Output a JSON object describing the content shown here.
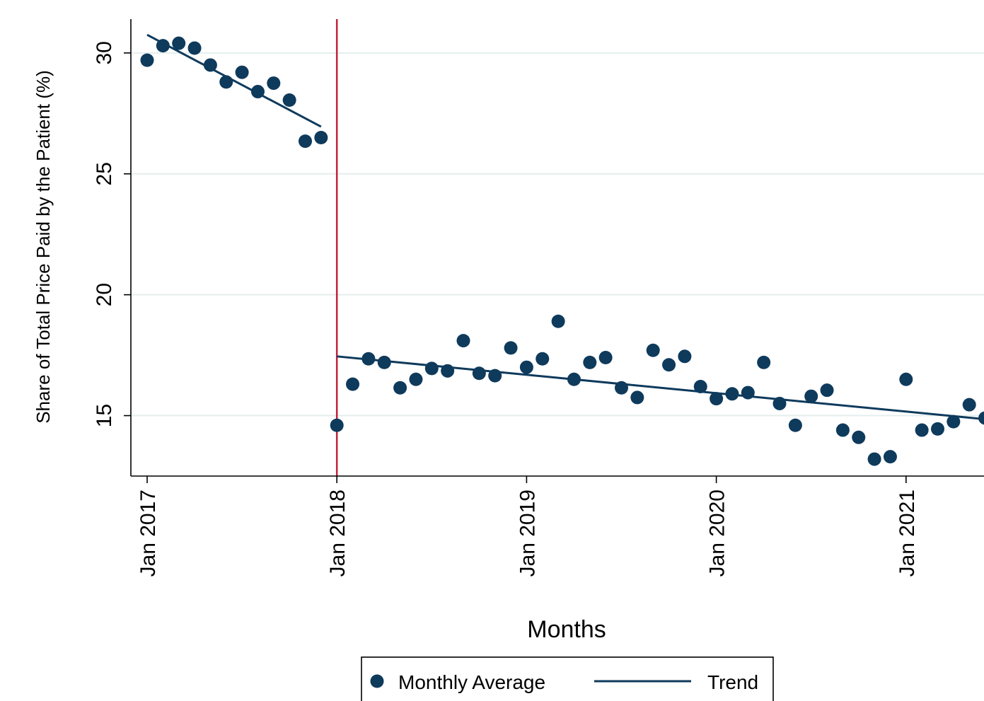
{
  "chart_data": {
    "type": "scatter",
    "xlabel": "Months",
    "ylabel": "Share of Total Price Paid by the Patient (%)",
    "x_ticks": [
      "Jan 2017",
      "Jan 2018",
      "Jan 2019",
      "Jan 2020",
      "Jan 2021"
    ],
    "y_ticks": [
      "15",
      "20",
      "25",
      "30"
    ],
    "ylim": [
      12.5,
      31.4
    ],
    "grid": "horizontal",
    "legend_position": "bottom",
    "vertical_line": {
      "x": "2018-01",
      "color": "#c0233a"
    },
    "colors": {
      "series": "#0e3a5c",
      "vline": "#c0233a",
      "grid": "#e4eeee"
    },
    "series": [
      {
        "name": "Monthly Average",
        "type": "scatter",
        "points": [
          {
            "x": "2017-01",
            "y": 29.7
          },
          {
            "x": "2017-02",
            "y": 30.3
          },
          {
            "x": "2017-03",
            "y": 30.4
          },
          {
            "x": "2017-04",
            "y": 30.2
          },
          {
            "x": "2017-05",
            "y": 29.5
          },
          {
            "x": "2017-06",
            "y": 28.8
          },
          {
            "x": "2017-07",
            "y": 29.2
          },
          {
            "x": "2017-08",
            "y": 28.4
          },
          {
            "x": "2017-09",
            "y": 28.75
          },
          {
            "x": "2017-10",
            "y": 28.05
          },
          {
            "x": "2017-11",
            "y": 26.35
          },
          {
            "x": "2017-12",
            "y": 26.5
          },
          {
            "x": "2018-01",
            "y": 14.6
          },
          {
            "x": "2018-02",
            "y": 16.3
          },
          {
            "x": "2018-03",
            "y": 17.35
          },
          {
            "x": "2018-04",
            "y": 17.2
          },
          {
            "x": "2018-05",
            "y": 16.15
          },
          {
            "x": "2018-06",
            "y": 16.5
          },
          {
            "x": "2018-07",
            "y": 16.95
          },
          {
            "x": "2018-08",
            "y": 16.85
          },
          {
            "x": "2018-09",
            "y": 18.1
          },
          {
            "x": "2018-10",
            "y": 16.75
          },
          {
            "x": "2018-11",
            "y": 16.65
          },
          {
            "x": "2018-12",
            "y": 17.8
          },
          {
            "x": "2019-01",
            "y": 17.0
          },
          {
            "x": "2019-02",
            "y": 17.35
          },
          {
            "x": "2019-03",
            "y": 18.9
          },
          {
            "x": "2019-04",
            "y": 16.5
          },
          {
            "x": "2019-05",
            "y": 17.2
          },
          {
            "x": "2019-06",
            "y": 17.4
          },
          {
            "x": "2019-07",
            "y": 16.15
          },
          {
            "x": "2019-08",
            "y": 15.75
          },
          {
            "x": "2019-09",
            "y": 17.7
          },
          {
            "x": "2019-10",
            "y": 17.1
          },
          {
            "x": "2019-11",
            "y": 17.45
          },
          {
            "x": "2019-12",
            "y": 16.2
          },
          {
            "x": "2020-01",
            "y": 15.7
          },
          {
            "x": "2020-02",
            "y": 15.9
          },
          {
            "x": "2020-03",
            "y": 15.95
          },
          {
            "x": "2020-04",
            "y": 17.2
          },
          {
            "x": "2020-05",
            "y": 15.5
          },
          {
            "x": "2020-06",
            "y": 14.6
          },
          {
            "x": "2020-07",
            "y": 15.8
          },
          {
            "x": "2020-08",
            "y": 16.05
          },
          {
            "x": "2020-09",
            "y": 14.4
          },
          {
            "x": "2020-10",
            "y": 14.1
          },
          {
            "x": "2020-11",
            "y": 13.2
          },
          {
            "x": "2020-12",
            "y": 13.3
          },
          {
            "x": "2021-01",
            "y": 16.5
          },
          {
            "x": "2021-02",
            "y": 14.4
          },
          {
            "x": "2021-03",
            "y": 14.45
          },
          {
            "x": "2021-04",
            "y": 14.75
          },
          {
            "x": "2021-05",
            "y": 15.45
          },
          {
            "x": "2021-06",
            "y": 14.9
          }
        ]
      },
      {
        "name": "Trend",
        "type": "line",
        "segments": [
          [
            {
              "x": "2017-01",
              "y": 30.75
            },
            {
              "x": "2017-12",
              "y": 26.95
            }
          ],
          [
            {
              "x": "2018-01",
              "y": 17.45
            },
            {
              "x": "2021-06",
              "y": 14.85
            }
          ]
        ]
      }
    ]
  },
  "legend": {
    "items": [
      {
        "label": "Monthly Average"
      },
      {
        "label": "Trend"
      }
    ]
  }
}
